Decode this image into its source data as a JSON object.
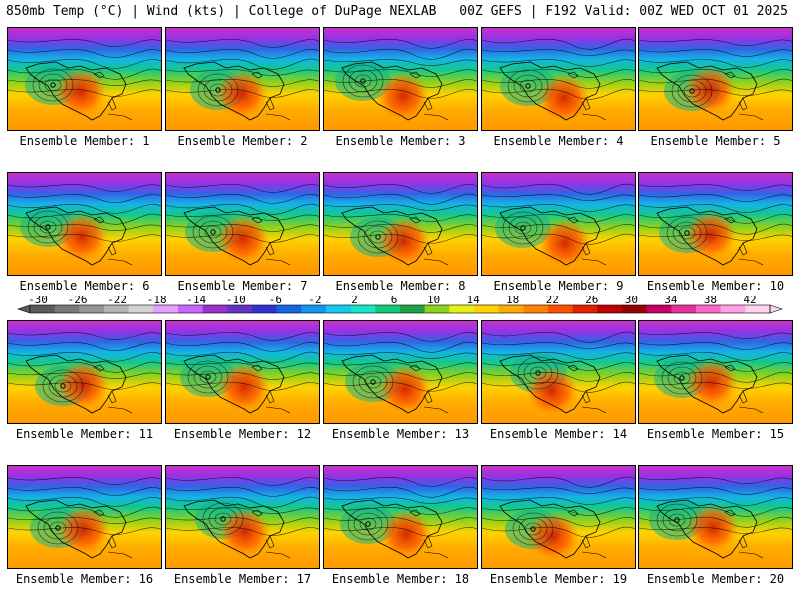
{
  "header": {
    "title_left": "850mb Temp (°C) | Wind (kts) | College of DuPage NEXLAB",
    "title_right": "00Z GEFS | F192 Valid: 00Z WED OCT 01 2025"
  },
  "member_label_prefix": "Ensemble Member: ",
  "members": [
    {
      "label": "Ensemble Member: 1"
    },
    {
      "label": "Ensemble Member: 2"
    },
    {
      "label": "Ensemble Member: 3"
    },
    {
      "label": "Ensemble Member: 4"
    },
    {
      "label": "Ensemble Member: 5"
    },
    {
      "label": "Ensemble Member: 6"
    },
    {
      "label": "Ensemble Member: 7"
    },
    {
      "label": "Ensemble Member: 8"
    },
    {
      "label": "Ensemble Member: 9"
    },
    {
      "label": "Ensemble Member: 10"
    },
    {
      "label": "Ensemble Member: 11"
    },
    {
      "label": "Ensemble Member: 12"
    },
    {
      "label": "Ensemble Member: 13"
    },
    {
      "label": "Ensemble Member: 14"
    },
    {
      "label": "Ensemble Member: 15"
    },
    {
      "label": "Ensemble Member: 16"
    },
    {
      "label": "Ensemble Member: 17"
    },
    {
      "label": "Ensemble Member: 18"
    },
    {
      "label": "Ensemble Member: 19"
    },
    {
      "label": "Ensemble Member: 20"
    }
  ],
  "colorbar": {
    "tick_labels": [
      "-30",
      "-26",
      "-22",
      "-18",
      "-14",
      "-10",
      "-6",
      "-2",
      "2",
      "6",
      "10",
      "14",
      "18",
      "22",
      "26",
      "30",
      "34",
      "38",
      "42"
    ],
    "colors": [
      "#5a5a5a",
      "#787878",
      "#969696",
      "#b4b4b4",
      "#d2d2d2",
      "#e6a0ff",
      "#c864ff",
      "#9632c8",
      "#6432c8",
      "#3232d2",
      "#1464e6",
      "#1496f0",
      "#14c8f0",
      "#14e6c8",
      "#14c878",
      "#1ea046",
      "#8cd21e",
      "#e6f014",
      "#ffd200",
      "#ffaa00",
      "#ff8200",
      "#ff5000",
      "#e61e00",
      "#be0000",
      "#960000",
      "#c80064",
      "#e63296",
      "#ff64c8",
      "#ffa0e6",
      "#ffd2f0"
    ]
  }
}
